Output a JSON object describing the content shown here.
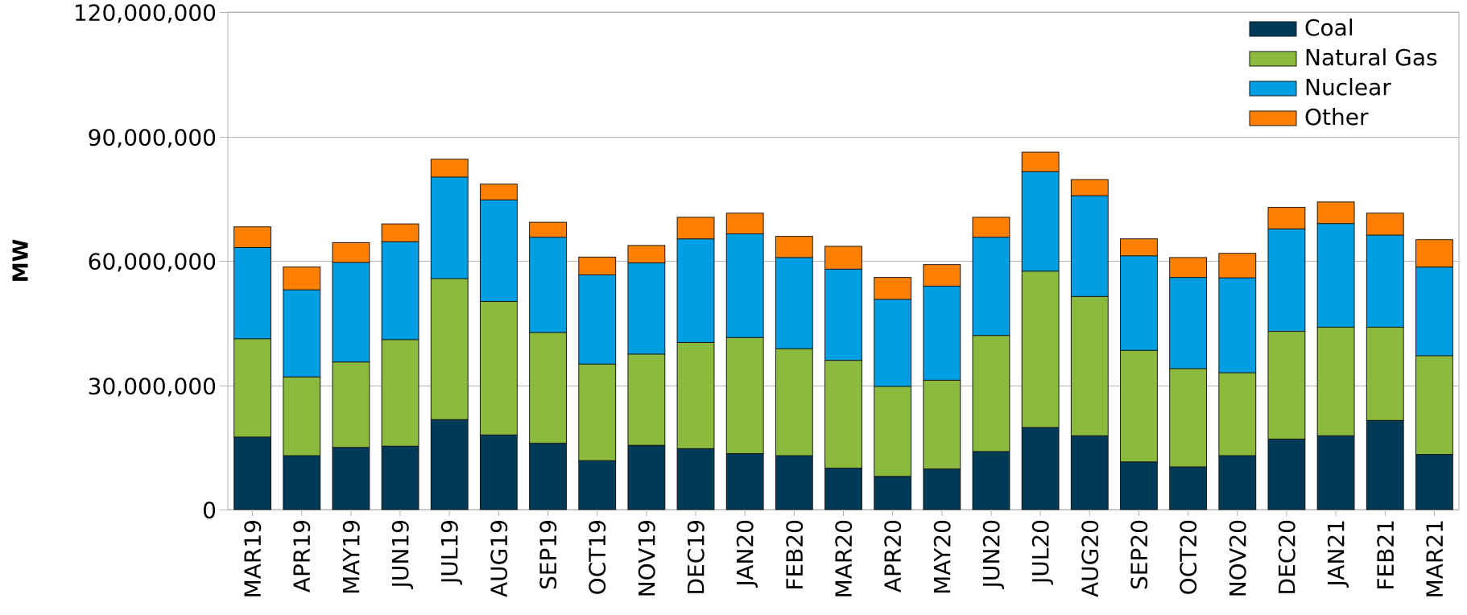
{
  "chart_data": {
    "type": "bar",
    "stacked": true,
    "title": "",
    "xlabel": "",
    "ylabel": "MW",
    "ylim": [
      0,
      120000000
    ],
    "yticks": [
      0,
      30000000,
      60000000,
      90000000,
      120000000
    ],
    "ytick_labels": [
      "0",
      "30,000,000",
      "60,000,000",
      "90,000,000",
      "120,000,000"
    ],
    "grid": true,
    "legend_position": "top-right",
    "categories": [
      "MAR19",
      "APR19",
      "MAY19",
      "JUN19",
      "JUL19",
      "AUG19",
      "SEP19",
      "OCT19",
      "NOV19",
      "DEC19",
      "JAN20",
      "FEB20",
      "MAR20",
      "APR20",
      "MAY20",
      "JUN20",
      "JUL20",
      "AUG20",
      "SEP20",
      "OCT20",
      "NOV20",
      "DEC20",
      "JAN21",
      "FEB21",
      "MAR21"
    ],
    "series": [
      {
        "name": "Coal",
        "color": "#003a57",
        "values": [
          17500000,
          13000000,
          15000000,
          15300000,
          21700000,
          18000000,
          16000000,
          11800000,
          15500000,
          14700000,
          13500000,
          13000000,
          10000000,
          8000000,
          9800000,
          14000000,
          19800000,
          17800000,
          11500000,
          10300000,
          13000000,
          17000000,
          17800000,
          21500000,
          13300000
        ]
      },
      {
        "name": "Natural Gas",
        "color": "#8cba3f",
        "values": [
          23700000,
          19000000,
          20600000,
          25700000,
          34000000,
          32200000,
          26700000,
          23300000,
          22000000,
          25600000,
          28000000,
          25800000,
          26000000,
          21700000,
          21400000,
          28000000,
          37700000,
          33600000,
          26900000,
          23700000,
          20000000,
          26000000,
          26200000,
          22500000,
          23800000
        ]
      },
      {
        "name": "Nuclear",
        "color": "#009fe3",
        "values": [
          22000000,
          21000000,
          24000000,
          23600000,
          24500000,
          24500000,
          23000000,
          21500000,
          22000000,
          25000000,
          25000000,
          22000000,
          22000000,
          21000000,
          22700000,
          23700000,
          24000000,
          24300000,
          22800000,
          22000000,
          22900000,
          24700000,
          25000000,
          22200000,
          21400000
        ]
      },
      {
        "name": "Other",
        "color": "#ff8000",
        "values": [
          5000000,
          5500000,
          4800000,
          4300000,
          4300000,
          3800000,
          3600000,
          4300000,
          4200000,
          5200000,
          5000000,
          5100000,
          5500000,
          5300000,
          5200000,
          4800000,
          4700000,
          3900000,
          4100000,
          4800000,
          5900000,
          5200000,
          5200000,
          5300000,
          6600000
        ]
      }
    ]
  }
}
